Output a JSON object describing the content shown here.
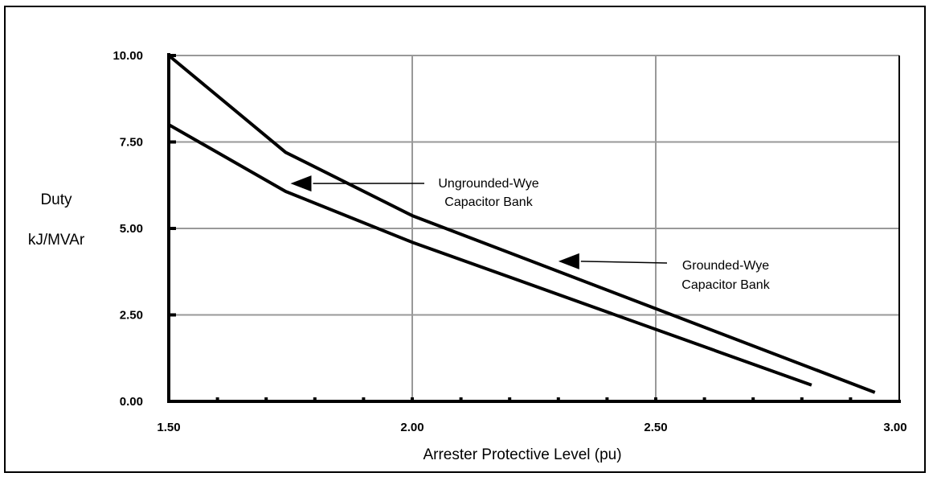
{
  "chart_data": {
    "type": "line",
    "title": "",
    "xlabel": "Arrester Protective Level (pu)",
    "ylabel": [
      "Duty",
      "kJ/MVAr"
    ],
    "xlim": [
      1.5,
      3.0
    ],
    "ylim": [
      0,
      10
    ],
    "x_ticks": [
      "1.50",
      "2.00",
      "2.50",
      "3.00"
    ],
    "y_ticks": [
      "0.00",
      "2.50",
      "5.00",
      "7.50",
      "10.00"
    ],
    "grid": true,
    "series": [
      {
        "points": [
          [
            1.5,
            10.0
          ],
          [
            1.74,
            7.2
          ],
          [
            2.0,
            5.37
          ],
          [
            2.95,
            0.26
          ]
        ],
        "color": "#000000"
      },
      {
        "points": [
          [
            1.5,
            8.0
          ],
          [
            1.74,
            6.07
          ],
          [
            2.0,
            4.6
          ],
          [
            2.82,
            0.47
          ]
        ],
        "color": "#000000"
      }
    ],
    "annotations": [
      {
        "lines": [
          "Ungrounded-Wye",
          "Capacitor Bank"
        ],
        "arrow_to": [
          1.75,
          6.3
        ]
      },
      {
        "lines": [
          "Grounded-Wye",
          "Capacitor Bank"
        ],
        "arrow_to": [
          2.3,
          4.05
        ]
      }
    ]
  }
}
